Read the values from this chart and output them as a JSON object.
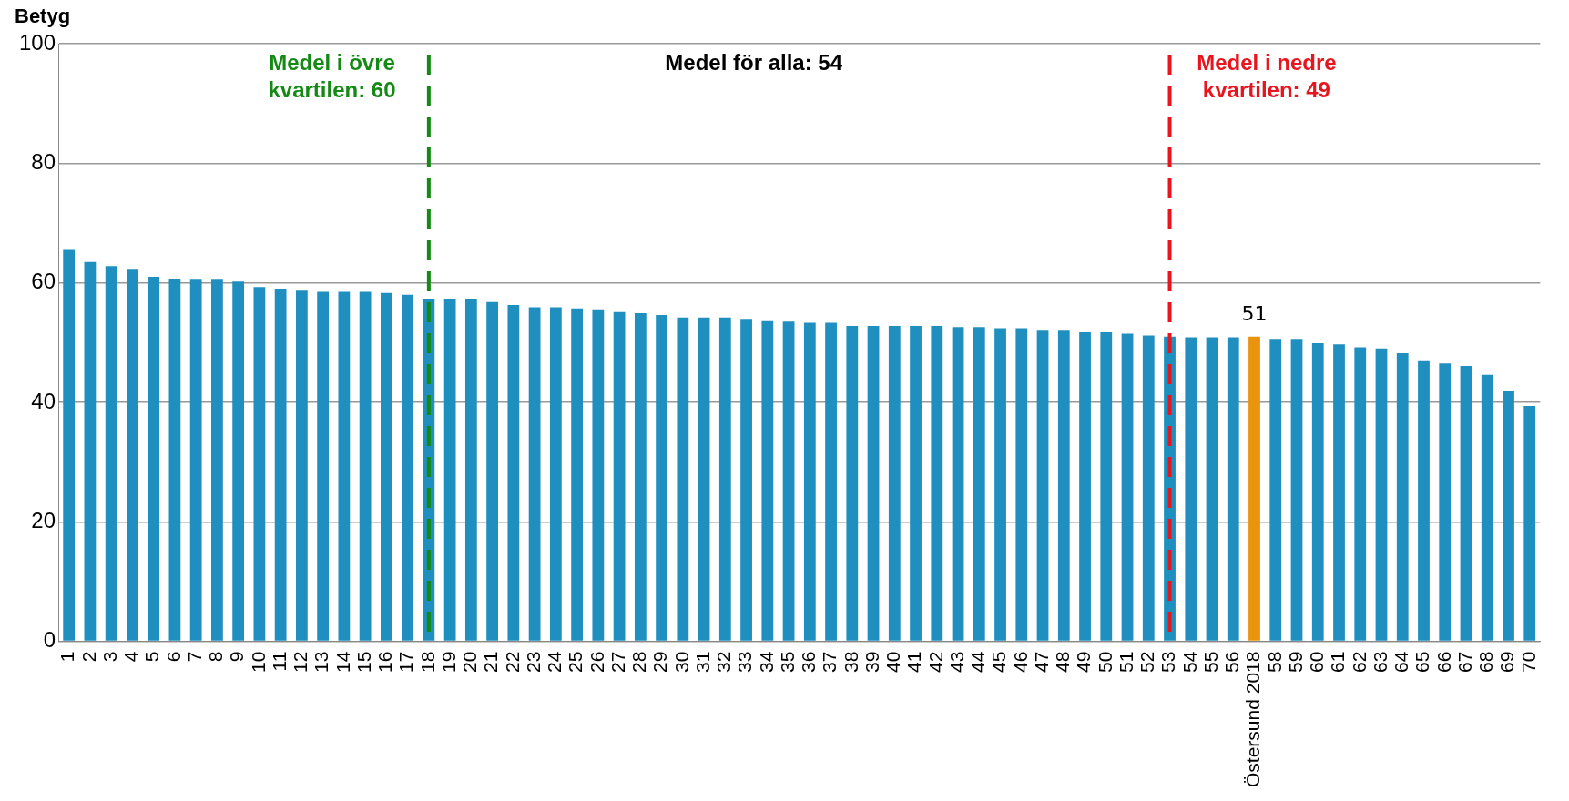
{
  "chart_data": {
    "type": "bar",
    "ylabel": "Betyg",
    "categories": [
      "1",
      "2",
      "3",
      "4",
      "5",
      "6",
      "7",
      "8",
      "9",
      "10",
      "11",
      "12",
      "13",
      "14",
      "15",
      "16",
      "17",
      "18",
      "19",
      "20",
      "21",
      "22",
      "23",
      "24",
      "25",
      "26",
      "27",
      "28",
      "29",
      "30",
      "31",
      "32",
      "33",
      "34",
      "35",
      "36",
      "37",
      "38",
      "39",
      "40",
      "41",
      "42",
      "43",
      "44",
      "45",
      "46",
      "47",
      "48",
      "49",
      "50",
      "51",
      "52",
      "53",
      "54",
      "55",
      "56",
      "Östersund 2018",
      "58",
      "59",
      "60",
      "61",
      "62",
      "63",
      "64",
      "65",
      "66",
      "67",
      "68",
      "69",
      "70"
    ],
    "values": [
      65.5,
      63.5,
      62.8,
      62.2,
      61,
      60.7,
      60.5,
      60.5,
      60.2,
      59.3,
      59,
      58.7,
      58.5,
      58.5,
      58.5,
      58.3,
      58,
      57.3,
      57.3,
      57.3,
      56.8,
      56.3,
      55.9,
      55.9,
      55.7,
      55.4,
      55.1,
      54.9,
      54.6,
      54.2,
      54.2,
      54.2,
      53.8,
      53.6,
      53.5,
      53.3,
      53.3,
      52.8,
      52.8,
      52.8,
      52.8,
      52.8,
      52.6,
      52.6,
      52.4,
      52.4,
      52,
      52,
      51.7,
      51.7,
      51.5,
      51.2,
      51,
      50.9,
      50.9,
      50.9,
      51,
      50.6,
      50.6,
      49.9,
      49.7,
      49.2,
      49,
      48.2,
      46.9,
      46.5,
      46.1,
      44.6,
      41.8,
      39.4
    ],
    "colors": [
      "#1f8fbf",
      "#1f8fbf",
      "#1f8fbf",
      "#1f8fbf",
      "#1f8fbf",
      "#1f8fbf",
      "#1f8fbf",
      "#1f8fbf",
      "#1f8fbf",
      "#1f8fbf",
      "#1f8fbf",
      "#1f8fbf",
      "#1f8fbf",
      "#1f8fbf",
      "#1f8fbf",
      "#1f8fbf",
      "#1f8fbf",
      "#1f8fbf",
      "#1f8fbf",
      "#1f8fbf",
      "#1f8fbf",
      "#1f8fbf",
      "#1f8fbf",
      "#1f8fbf",
      "#1f8fbf",
      "#1f8fbf",
      "#1f8fbf",
      "#1f8fbf",
      "#1f8fbf",
      "#1f8fbf",
      "#1f8fbf",
      "#1f8fbf",
      "#1f8fbf",
      "#1f8fbf",
      "#1f8fbf",
      "#1f8fbf",
      "#1f8fbf",
      "#1f8fbf",
      "#1f8fbf",
      "#1f8fbf",
      "#1f8fbf",
      "#1f8fbf",
      "#1f8fbf",
      "#1f8fbf",
      "#1f8fbf",
      "#1f8fbf",
      "#1f8fbf",
      "#1f8fbf",
      "#1f8fbf",
      "#1f8fbf",
      "#1f8fbf",
      "#1f8fbf",
      "#1f8fbf",
      "#1f8fbf",
      "#1f8fbf",
      "#1f8fbf",
      "#e8940c",
      "#1f8fbf",
      "#1f8fbf",
      "#1f8fbf",
      "#1f8fbf",
      "#1f8fbf",
      "#1f8fbf",
      "#1f8fbf",
      "#1f8fbf",
      "#1f8fbf",
      "#1f8fbf",
      "#1f8fbf",
      "#1f8fbf",
      "#1f8fbf"
    ],
    "value_labels": [
      null,
      null,
      null,
      null,
      null,
      null,
      null,
      null,
      null,
      null,
      null,
      null,
      null,
      null,
      null,
      null,
      null,
      null,
      null,
      null,
      null,
      null,
      null,
      null,
      null,
      null,
      null,
      null,
      null,
      null,
      null,
      null,
      null,
      null,
      null,
      null,
      null,
      null,
      null,
      null,
      null,
      null,
      null,
      null,
      null,
      null,
      null,
      null,
      null,
      null,
      null,
      null,
      null,
      null,
      null,
      null,
      "51",
      null,
      null,
      null,
      null,
      null,
      null,
      null,
      null,
      null,
      null,
      null,
      null,
      null
    ],
    "ylim": [
      0,
      100
    ],
    "yticks": [
      0,
      20,
      40,
      60,
      80,
      100
    ],
    "grid": "y",
    "legend": false,
    "ref_lines": [
      {
        "axis": "x",
        "value": "18",
        "color": "#148a14",
        "line_style": "dashed"
      },
      {
        "axis": "x",
        "value": "53",
        "color": "#e8141e",
        "line_style": "dashed"
      }
    ],
    "annotations": [
      "Medel i övre\nkvartilen: 60",
      "Medel för alla: 54",
      "Medel i nedre\nkvartilen: 49"
    ]
  }
}
